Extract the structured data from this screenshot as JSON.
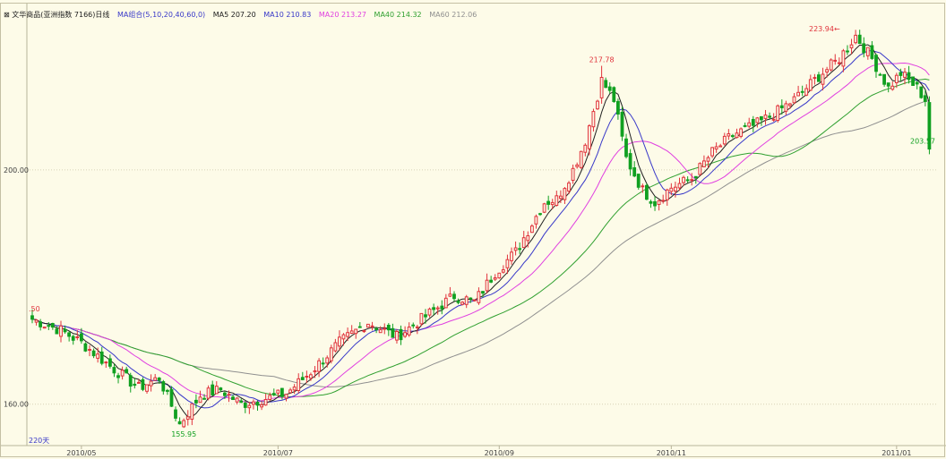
{
  "header": {
    "prefix": "⊠ 文华商品(亚洲指数 7166)日线",
    "ma_group": "MA组合(5,10,20,40,60,0)",
    "ma5": "MA5 207.20",
    "ma10": "MA10 210.83",
    "ma20": "MA20 213.27",
    "ma40": "MA40 214.32",
    "ma60": "MA60 212.06"
  },
  "colors": {
    "background": "#fdfbe8",
    "up": "#e0333b",
    "down": "#10a020",
    "ma5": "#202020",
    "ma10": "#3838c8",
    "ma20": "#e040e0",
    "ma40": "#30a030",
    "ma60": "#909090",
    "grid": "#d7d2b6"
  },
  "annotations": {
    "left_high": ".50",
    "low": "155.95",
    "high1": "217.78",
    "high2": "223.94",
    "last": "203.57",
    "period": "220天"
  },
  "chart_data": {
    "type": "candlestick",
    "y_axis_labels": [
      "200.00",
      "160.00"
    ],
    "y_axis_values": [
      200,
      160
    ],
    "x_axis_labels": [
      "2010/05",
      "2010/07",
      "2010/09",
      "2010/11",
      "2011/01"
    ],
    "ylim": [
      154.3,
      225.5
    ],
    "bars": 220,
    "grid": true,
    "key_points": {
      "start_close": 174.5,
      "min_low": 155.95,
      "peak_nov": 217.78,
      "peak_feb": 223.94,
      "end_close": 203.57
    },
    "ma_last": {
      "MA5": 207.2,
      "MA10": 210.83,
      "MA20": 213.27,
      "MA40": 214.32,
      "MA60": 212.06
    }
  }
}
